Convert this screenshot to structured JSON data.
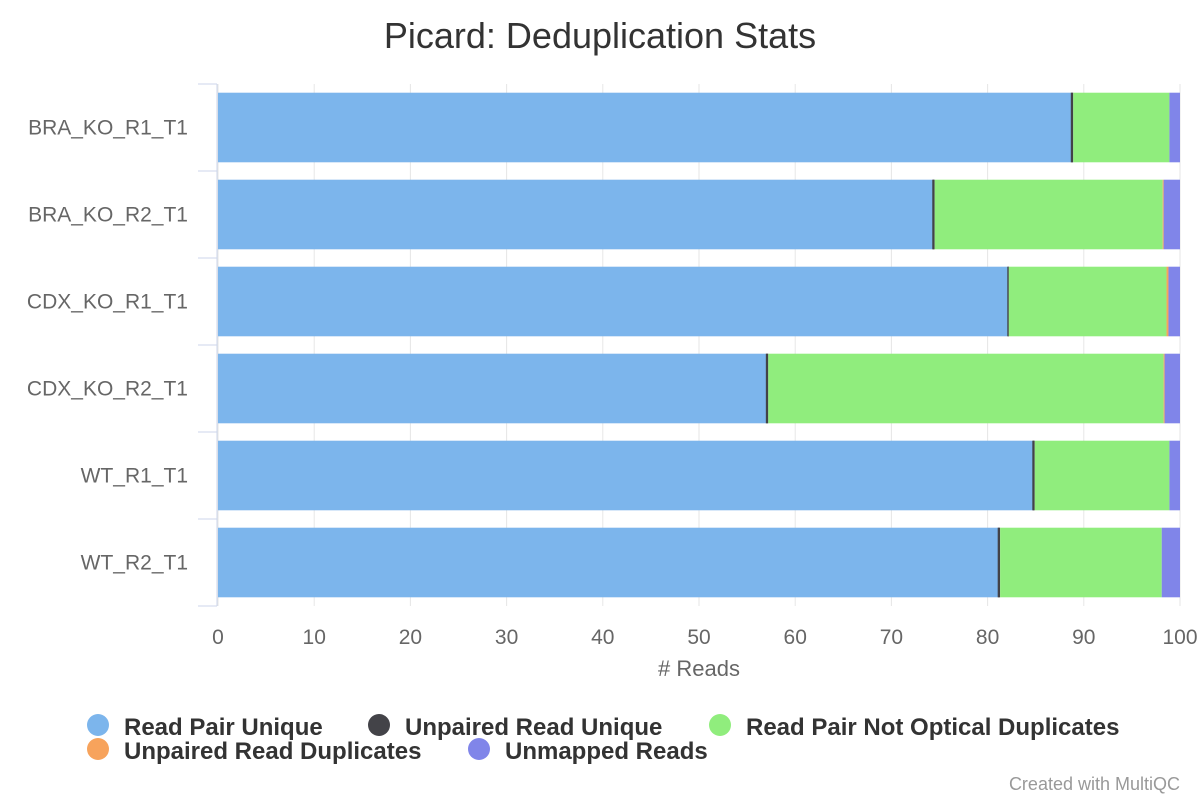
{
  "chart_data": {
    "type": "bar",
    "orientation": "horizontal",
    "stacking": "percent",
    "title": "Picard: Deduplication Stats",
    "xlabel": "# Reads",
    "ylabel": "",
    "xlim": [
      0,
      100
    ],
    "x_ticks": [
      "0",
      "10",
      "20",
      "30",
      "40",
      "50",
      "60",
      "70",
      "80",
      "90",
      "100"
    ],
    "grid": true,
    "legend_position": "bottom",
    "credit": "Created with MultiQC",
    "categories": [
      "BRA_KO_R1_T1",
      "BRA_KO_R2_T1",
      "CDX_KO_R1_T1",
      "CDX_KO_R2_T1",
      "WT_R1_T1",
      "WT_R2_T1"
    ],
    "series": [
      {
        "name": "Read Pair Unique",
        "color": "#7cb5ec",
        "values": [
          88.7,
          74.3,
          82.1,
          57.0,
          84.7,
          81.1
        ]
      },
      {
        "name": "Unpaired Read Unique",
        "color": "#434348",
        "values": [
          0.2,
          0.2,
          0.1,
          0.2,
          0.2,
          0.2
        ]
      },
      {
        "name": "Read Pair Not Optical Duplicates",
        "color": "#90ed7d",
        "values": [
          10.0,
          23.7,
          16.4,
          41.1,
          14.0,
          16.8
        ]
      },
      {
        "name": "Unpaired Read Duplicates",
        "color": "#f7a35c",
        "values": [
          0.0,
          0.1,
          0.2,
          0.1,
          0.0,
          0.0
        ]
      },
      {
        "name": "Unmapped Reads",
        "color": "#8085e9",
        "values": [
          1.1,
          1.7,
          1.2,
          1.6,
          1.1,
          1.9
        ]
      }
    ]
  }
}
